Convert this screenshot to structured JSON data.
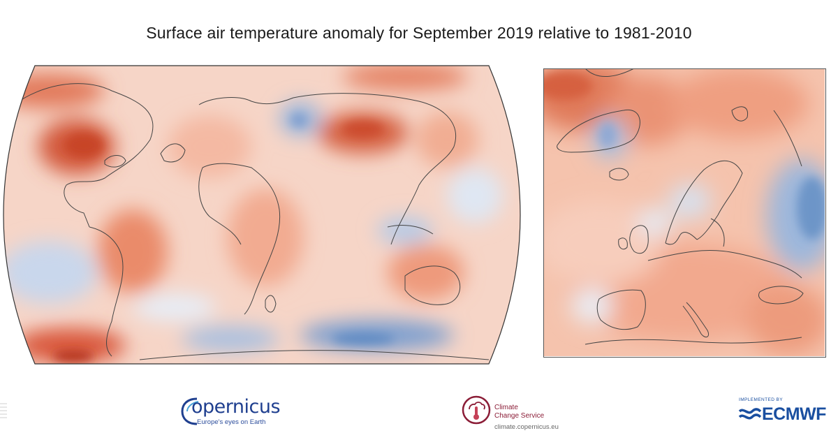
{
  "title": "Surface air temperature anomaly for September 2019 relative to 1981-2010",
  "maps": {
    "world": {
      "projection": "Robinson",
      "region": "global"
    },
    "europe": {
      "region": "Europe"
    },
    "palette": {
      "warm_strong": "#c6472a",
      "warm_mid": "#eb8868",
      "warm_light": "#f7c7b3",
      "neutral": "#f9ecea",
      "cool_light": "#dde6f2",
      "cool_mid": "#a6bedf",
      "cool_strong": "#5f89c2",
      "coastline": "#444444"
    }
  },
  "logos": {
    "copernicus": {
      "name": "opernicus",
      "tagline": "Europe's eyes on Earth"
    },
    "c3s": {
      "line1": "Climate",
      "line2": "Change Service",
      "url": "climate.copernicus.eu"
    },
    "ecmwf": {
      "implemented_by": "IMPLEMENTED BY",
      "name": "ECMWF"
    }
  }
}
